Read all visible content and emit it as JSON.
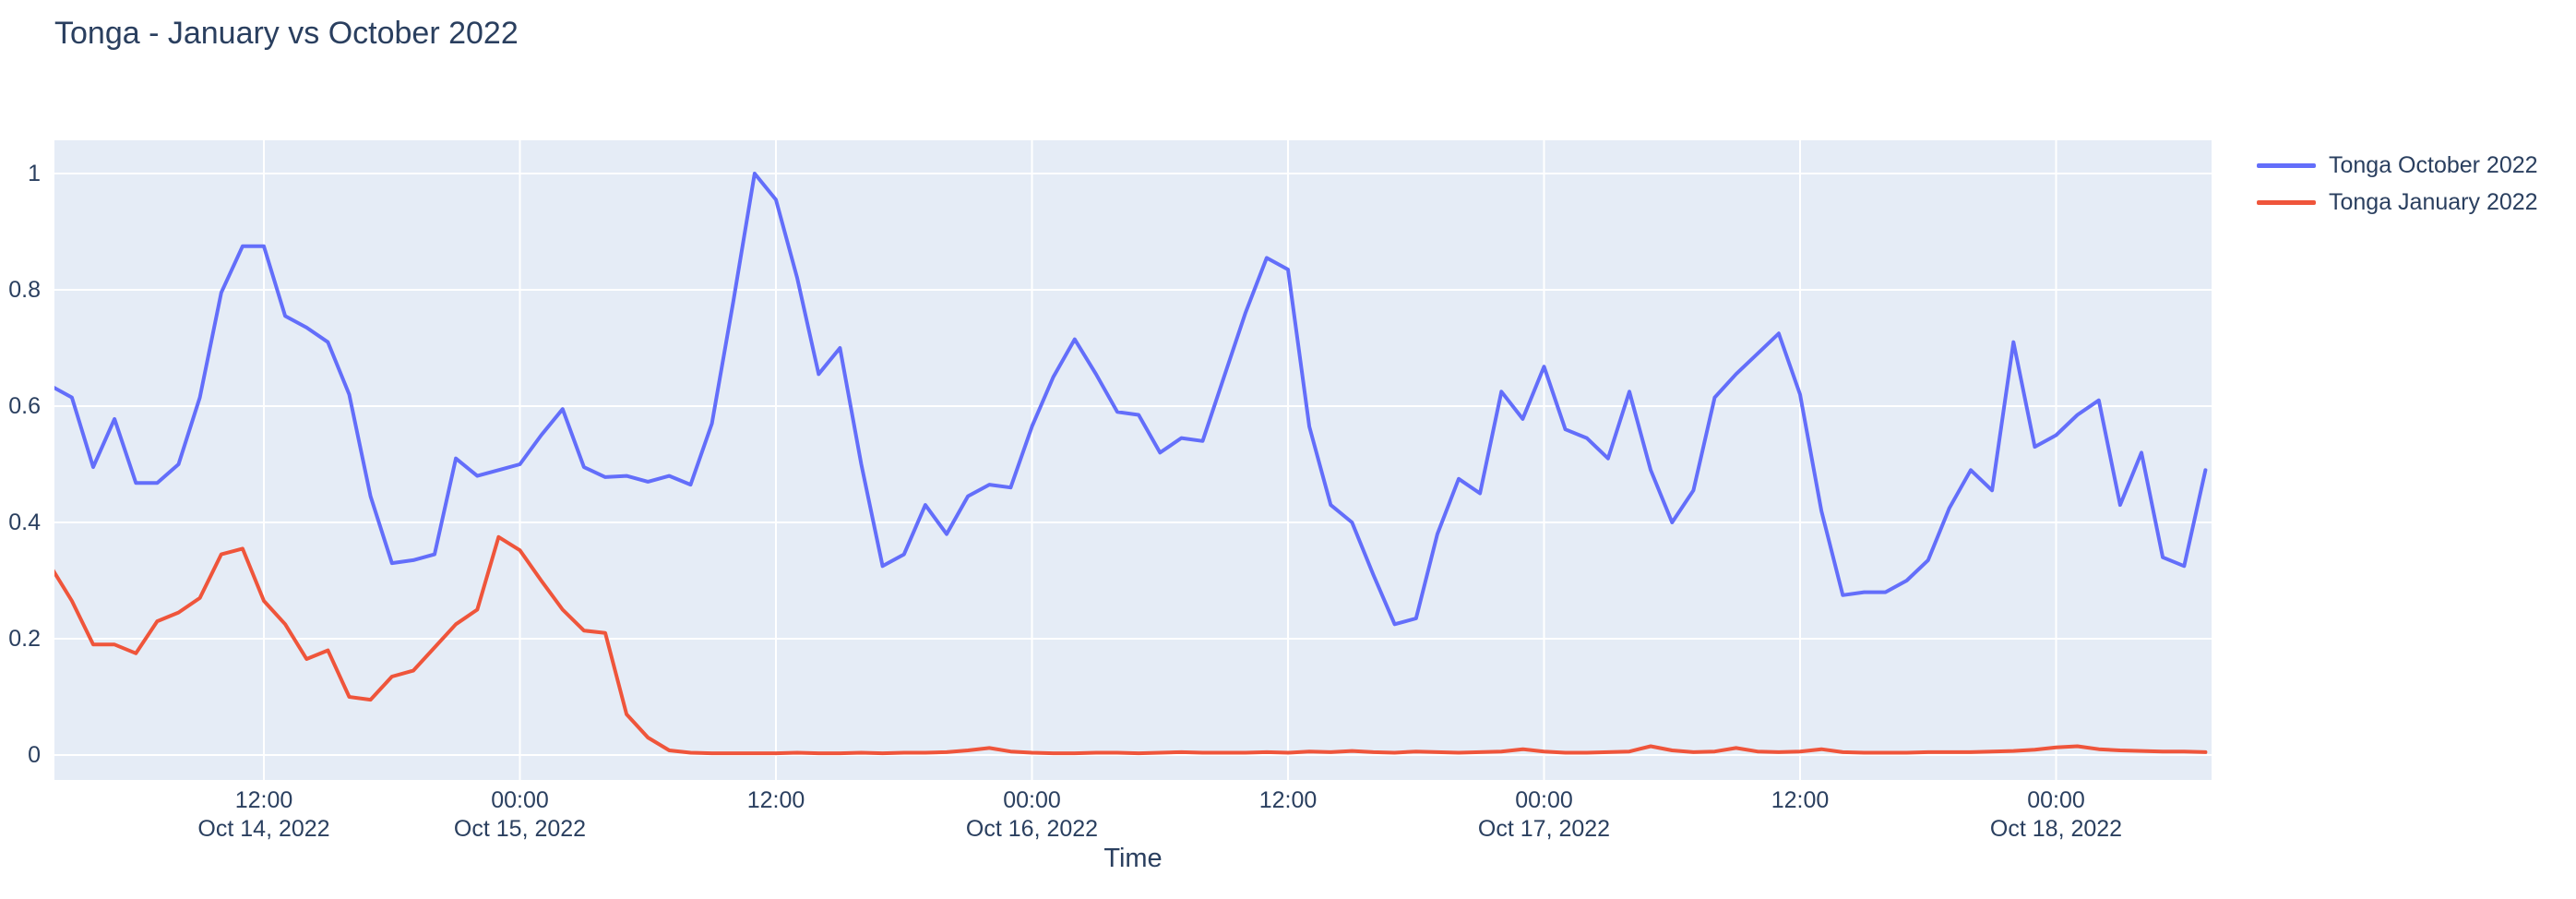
{
  "header": {
    "title": "Tonga - January vs October 2022"
  },
  "legend": {
    "items": [
      {
        "label": "Tonga October 2022",
        "color": "#636EFA"
      },
      {
        "label": "Tonga January 2022",
        "color": "#EF553B"
      }
    ]
  },
  "colors": {
    "paper_background": "#FFFFFF",
    "plot_background": "#E5ECF6",
    "gridline": "#FFFFFF",
    "text": "#2a3f5f",
    "series_october": "#636EFA",
    "series_january": "#EF553B"
  },
  "chart_data": {
    "type": "line",
    "title": "Tonga - January vs October 2022",
    "xlabel": "Time",
    "ylabel": "",
    "legend_position": "right-top",
    "grid": true,
    "x_unit": "hours since Oct 14, 2022 00:00",
    "x_axis": {
      "range_hours": [
        1.8,
        103.3
      ],
      "ticks": [
        {
          "hour": 12,
          "line1": "12:00",
          "line2": "Oct 14, 2022"
        },
        {
          "hour": 24,
          "line1": "00:00",
          "line2": "Oct 15, 2022"
        },
        {
          "hour": 36,
          "line1": "12:00",
          "line2": ""
        },
        {
          "hour": 48,
          "line1": "00:00",
          "line2": "Oct 16, 2022"
        },
        {
          "hour": 60,
          "line1": "12:00",
          "line2": ""
        },
        {
          "hour": 72,
          "line1": "00:00",
          "line2": "Oct 17, 2022"
        },
        {
          "hour": 84,
          "line1": "12:00",
          "line2": ""
        },
        {
          "hour": 96,
          "line1": "00:00",
          "line2": "Oct 18, 2022"
        }
      ]
    },
    "y_axis": {
      "ticks": [
        0,
        0.2,
        0.4,
        0.6,
        0.8,
        1
      ],
      "tick_labels": [
        "0",
        "0.2",
        "0.4",
        "0.6",
        "0.8",
        "1"
      ],
      "range": [
        -0.043,
        1.057
      ]
    },
    "series": [
      {
        "name": "Tonga October 2022",
        "color": "#636EFA",
        "start_hour": 2,
        "interval_hours": 1,
        "values": [
          0.635,
          0.615,
          0.495,
          0.578,
          0.468,
          0.468,
          0.5,
          0.615,
          0.795,
          0.875,
          0.875,
          0.755,
          0.735,
          0.71,
          0.62,
          0.445,
          0.33,
          0.335,
          0.345,
          0.51,
          0.48,
          0.49,
          0.5,
          0.55,
          0.595,
          0.495,
          0.478,
          0.48,
          0.47,
          0.48,
          0.465,
          0.57,
          0.78,
          1.0,
          0.955,
          0.82,
          0.655,
          0.7,
          0.5,
          0.325,
          0.345,
          0.43,
          0.38,
          0.445,
          0.465,
          0.46,
          0.565,
          0.65,
          0.715,
          0.655,
          0.59,
          0.585,
          0.52,
          0.545,
          0.54,
          0.65,
          0.76,
          0.855,
          0.835,
          0.565,
          0.43,
          0.4,
          0.31,
          0.225,
          0.235,
          0.38,
          0.475,
          0.45,
          0.625,
          0.578,
          0.668,
          0.56,
          0.545,
          0.51,
          0.625,
          0.49,
          0.4,
          0.455,
          0.615,
          0.655,
          0.69,
          0.725,
          0.62,
          0.42,
          0.275,
          0.28,
          0.28,
          0.3,
          0.335,
          0.425,
          0.49,
          0.455,
          0.71,
          0.53,
          0.55,
          0.585,
          0.61,
          0.43,
          0.52,
          0.34,
          0.325,
          0.49
        ]
      },
      {
        "name": "Tonga January 2022",
        "color": "#EF553B",
        "start_hour": 2,
        "interval_hours": 1,
        "values": [
          0.325,
          0.265,
          0.19,
          0.19,
          0.175,
          0.23,
          0.245,
          0.27,
          0.345,
          0.355,
          0.265,
          0.225,
          0.165,
          0.18,
          0.1,
          0.095,
          0.135,
          0.145,
          0.185,
          0.225,
          0.25,
          0.375,
          0.352,
          0.3,
          0.25,
          0.214,
          0.21,
          0.07,
          0.03,
          0.008,
          0.004,
          0.003,
          0.003,
          0.003,
          0.003,
          0.004,
          0.003,
          0.003,
          0.004,
          0.003,
          0.004,
          0.004,
          0.005,
          0.008,
          0.012,
          0.006,
          0.004,
          0.003,
          0.003,
          0.004,
          0.004,
          0.003,
          0.004,
          0.005,
          0.004,
          0.004,
          0.004,
          0.005,
          0.004,
          0.006,
          0.005,
          0.007,
          0.005,
          0.004,
          0.006,
          0.005,
          0.004,
          0.005,
          0.006,
          0.01,
          0.006,
          0.004,
          0.004,
          0.005,
          0.006,
          0.015,
          0.008,
          0.005,
          0.006,
          0.012,
          0.006,
          0.005,
          0.006,
          0.01,
          0.005,
          0.004,
          0.004,
          0.004,
          0.005,
          0.005,
          0.005,
          0.006,
          0.007,
          0.009,
          0.013,
          0.015,
          0.01,
          0.008,
          0.007,
          0.006,
          0.006,
          0.005
        ]
      }
    ]
  }
}
